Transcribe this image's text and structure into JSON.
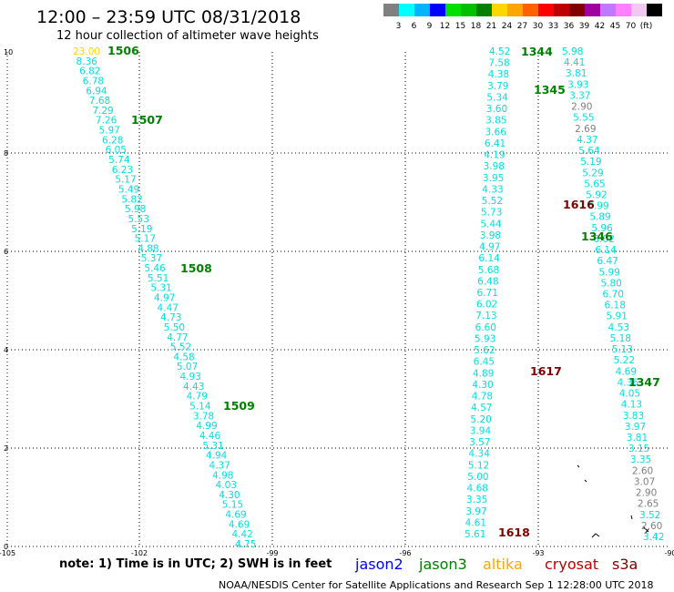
{
  "header": {
    "title": "12:00 – 23:59 UTC 08/31/2018",
    "subtitle": "12 hour collection of altimeter wave heights"
  },
  "scale": {
    "unit": "(ft)",
    "colors": [
      "#808080",
      "#00ffff",
      "#00b4ff",
      "#0000ff",
      "#00e000",
      "#00c000",
      "#008000",
      "#ffd700",
      "#ffa500",
      "#ff6000",
      "#ff0000",
      "#c00000",
      "#800000",
      "#a000a0",
      "#c078ff",
      "#ff80ff",
      "#f0c8f0",
      "#000000"
    ],
    "labels": [
      "3",
      "6",
      "9",
      "12",
      "15",
      "18",
      "21",
      "24",
      "27",
      "30",
      "33",
      "36",
      "39",
      "42",
      "45",
      "70",
      "(ft)"
    ]
  },
  "axes": {
    "x_ticks": [
      "-105",
      "-102",
      "-99",
      "-96",
      "-93",
      "-90"
    ],
    "y_ticks": [
      "0",
      "2",
      "4",
      "6",
      "8",
      "10"
    ]
  },
  "passes": [
    {
      "id": "1506",
      "color": "#008000"
    },
    {
      "id": "1507",
      "color": "#008000"
    },
    {
      "id": "1508",
      "color": "#008000"
    },
    {
      "id": "1509",
      "color": "#008000"
    },
    {
      "id": "1344",
      "color": "#008000"
    },
    {
      "id": "1345",
      "color": "#008000"
    },
    {
      "id": "1346",
      "color": "#008000"
    },
    {
      "id": "1347",
      "color": "#008000"
    },
    {
      "id": "1616",
      "color": "#800000"
    },
    {
      "id": "1617",
      "color": "#800000"
    },
    {
      "id": "1618",
      "color": "#800000"
    }
  ],
  "tracks": {
    "jason3_west": [
      "23.00",
      "8.36",
      "6.82",
      "6.78",
      "6.94",
      "7.68",
      "7.29",
      "7.26",
      "5.97",
      "6.28",
      "6.05",
      "5.74",
      "6.23",
      "5.17",
      "5.49",
      "5.82",
      "5.98",
      "5.53",
      "5.19",
      "5.17",
      "4.88",
      "5.37",
      "5.46",
      "5.51",
      "5.31",
      "4.97",
      "4.47",
      "4.73",
      "5.50",
      "4.77",
      "5.52",
      "4.58",
      "5.07",
      "4.93",
      "4.43",
      "4.79",
      "5.14",
      "3.78",
      "4.99",
      "4.46",
      "5.31",
      "4.94",
      "4.37",
      "4.98",
      "4.03",
      "4.30",
      "5.15",
      "4.69",
      "4.69",
      "4.42",
      "4.75"
    ],
    "jason3_mid": [
      "4.52",
      "7.58",
      "4.38",
      "3.79",
      "5.34",
      "3.60",
      "3.85",
      "3.66",
      "6.41",
      "4.19",
      "3.98",
      "3.95",
      "4.33",
      "5.52",
      "5.73",
      "5.44",
      "3.98",
      "4.97",
      "6.14",
      "5.68",
      "6.48",
      "6.71",
      "6.02",
      "7.13",
      "6.60",
      "5.93",
      "5.62",
      "6.45",
      "4.89",
      "4.30",
      "4.78",
      "4.57",
      "5.20",
      "3.94",
      "3.57",
      "4.34",
      "5.12",
      "5.00",
      "4.68",
      "3.35",
      "3.97",
      "4.61",
      "5.61"
    ],
    "jason3_east": [
      "5.98",
      "4.41",
      "3.81",
      "3.93",
      "3.37",
      "2.90",
      "5.55",
      "2.69",
      "4.37",
      "5.64",
      "5.19",
      "5.29",
      "5.65",
      "5.92",
      "6.99",
      "5.89",
      "5.96",
      "6.02",
      "6.14",
      "6.47",
      "5.99",
      "5.80",
      "6.70",
      "6.18",
      "5.91",
      "4.53",
      "5.18",
      "5.13",
      "5.22",
      "4.69",
      "4.36",
      "4.05",
      "4.13",
      "3.83",
      "3.97",
      "3.81",
      "3.15",
      "3.35",
      "2.60",
      "3.07",
      "2.90",
      "2.65",
      "3.52",
      "2.60",
      "3.42"
    ]
  },
  "legend": {
    "note": "note: 1) Time is in UTC; 2) SWH is in feet",
    "satellites": [
      {
        "name": "jason2",
        "color": "#0000ff"
      },
      {
        "name": "jason3",
        "color": "#008000"
      },
      {
        "name": "altika",
        "color": "#ffa500"
      },
      {
        "name": "cryosat",
        "color": "#c00000"
      },
      {
        "name": "s3a",
        "color": "#800000"
      }
    ]
  },
  "footer": "NOAA/NESDIS Center for Satellite Applications and Research    Sep  1 12:28:00 UTC 2018"
}
